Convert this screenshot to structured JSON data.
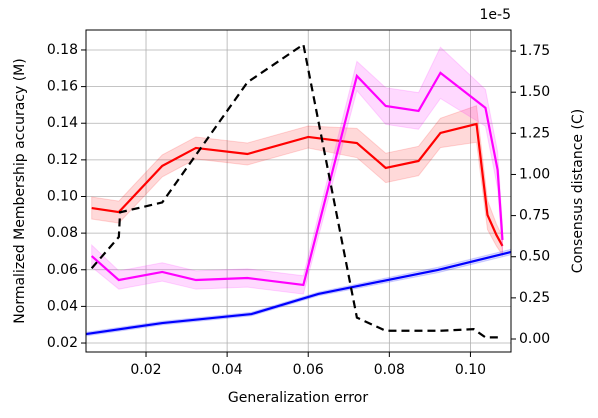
{
  "chart_data": {
    "type": "line",
    "xlabel": "Generalization error",
    "ylabel": "Normalized Membership accuracy (M)",
    "y2label": "Consensus distance (C)",
    "y2_offset_label": "1e-5",
    "xlim": [
      0.0052,
      0.11
    ],
    "xticks": [
      0.02,
      0.04,
      0.06,
      0.08,
      {
        "value": 0.1,
        "label": "0.10"
      }
    ],
    "ylim": [
      0.0151,
      0.1909
    ],
    "yticks": [
      0.02,
      0.04,
      0.06,
      0.08,
      {
        "value": 0.1,
        "label": "0.10"
      },
      0.12,
      0.14,
      0.16,
      0.18
    ],
    "y2lim": [
      -0.079,
      1.878
    ],
    "y2ticks": [
      {
        "value": 0,
        "label": "0.00"
      },
      0.25,
      {
        "value": 0.5,
        "label": "0.50"
      },
      0.75,
      {
        "value": 1,
        "label": "1.00"
      },
      1.25,
      {
        "value": 1.5,
        "label": "1.50"
      },
      1.75
    ],
    "grid": true,
    "series": [
      {
        "color": "#ff0000",
        "line_style": "solid",
        "x": [
          0.0066,
          0.0133,
          0.024,
          0.0323,
          0.045,
          0.06,
          0.072,
          0.0791,
          0.0872,
          0.0926,
          0.1015,
          0.1042,
          0.1064,
          0.1079
        ],
        "values": [
          0.0937,
          0.0915,
          0.1167,
          0.1265,
          0.1232,
          0.1325,
          0.1292,
          0.1156,
          0.1194,
          0.1347,
          0.1396,
          0.0899,
          0.079,
          0.073
        ],
        "errors": [
          0.006,
          0.006,
          0.006,
          0.006,
          0.006,
          0.006,
          0.008,
          0.008,
          0.008,
          0.008,
          0.01,
          0.008,
          0.006,
          0.005
        ]
      },
      {
        "color": "#ff00ff",
        "line_style": "solid",
        "x": [
          0.0066,
          0.0133,
          0.024,
          0.0323,
          0.045,
          0.0588,
          0.072,
          0.0791,
          0.0872,
          0.0926,
          0.1037,
          0.1067,
          0.1079
        ],
        "values": [
          0.0675,
          0.0544,
          0.0588,
          0.0544,
          0.0555,
          0.0517,
          0.1658,
          0.1494,
          0.1467,
          0.1675,
          0.1484,
          0.1145,
          0.0763
        ],
        "errors": [
          0.006,
          0.005,
          0.005,
          0.005,
          0.005,
          0.005,
          0.008,
          0.01,
          0.01,
          0.014,
          0.01,
          0.01,
          0.008
        ]
      },
      {
        "color": "#0000ff",
        "line_style": "solid",
        "x": [
          0.0052,
          0.024,
          0.046,
          0.0625,
          0.092,
          0.11
        ],
        "values": [
          0.0249,
          0.0309,
          0.0358,
          0.0468,
          0.0599,
          0.0697
        ],
        "errors": [
          0.001,
          0.001,
          0.001,
          0.001,
          0.0015,
          0.0015
        ]
      },
      {
        "color": "#000000",
        "line_style": "dashed",
        "axis": "y2",
        "x": [
          0.0066,
          0.0133,
          0.0136,
          0.024,
          0.045,
          0.0588,
          0.072,
          0.0791,
          0.0926,
          0.1008,
          0.1037,
          0.1072
        ],
        "values": [
          0.43,
          0.62,
          0.77,
          0.83,
          1.56,
          1.79,
          0.13,
          0.05,
          0.05,
          0.06,
          0.01,
          0.01
        ]
      }
    ]
  }
}
